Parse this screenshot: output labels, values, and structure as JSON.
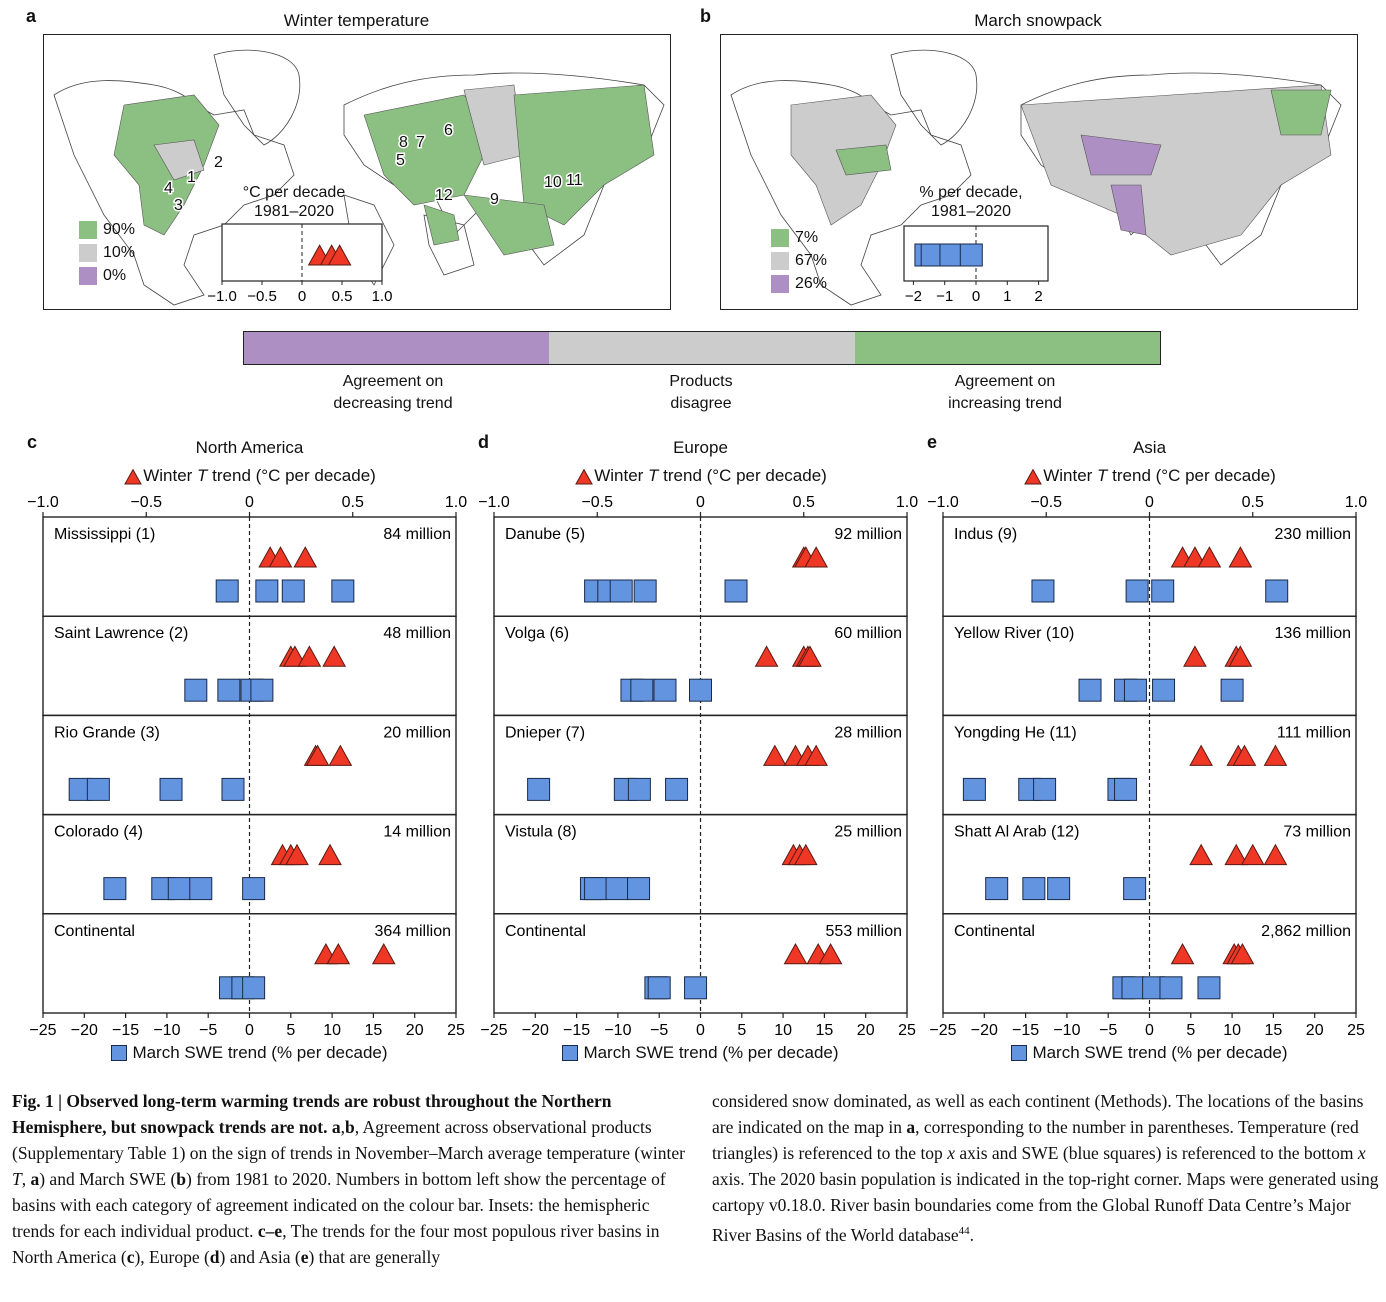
{
  "colors": {
    "increase": "#8cbf82",
    "disagree": "#cccccc",
    "decrease": "#ad8fc3",
    "triangle": "#ee3724",
    "square": "#6394e0",
    "outline": "#222222"
  },
  "panel_a": {
    "letter": "a",
    "title": "Winter temperature",
    "legend": [
      {
        "key": "increase",
        "label": "90%"
      },
      {
        "key": "disagree",
        "label": "10%"
      },
      {
        "key": "decrease",
        "label": "0%"
      }
    ],
    "inset": {
      "title_line1": "°C per decade",
      "title_line2": "1981–2020",
      "xlim": [
        -1.0,
        1.0
      ],
      "ticks": [
        "−1.0",
        "−0.5",
        "0",
        "0.5",
        "1.0"
      ],
      "tick_values": [
        -1.0,
        -0.5,
        0,
        0.5,
        1.0
      ],
      "marker": "triangle",
      "values": [
        0.22,
        0.37,
        0.47
      ]
    },
    "basin_numbers": [
      "1",
      "2",
      "3",
      "4",
      "5",
      "6",
      "7",
      "8",
      "9",
      "10",
      "11",
      "12"
    ]
  },
  "panel_b": {
    "letter": "b",
    "title": "March snowpack",
    "legend": [
      {
        "key": "increase",
        "label": "7%"
      },
      {
        "key": "disagree",
        "label": "67%"
      },
      {
        "key": "decrease",
        "label": "26%"
      }
    ],
    "inset": {
      "title_line1": "% per decade,",
      "title_line2": "1981–2020",
      "xlim": [
        -2.3,
        2.3
      ],
      "ticks": [
        "−2",
        "−1",
        "0",
        "1",
        "2"
      ],
      "tick_values": [
        -2,
        -1,
        0,
        1,
        2
      ],
      "marker": "square",
      "values": [
        -1.6,
        -1.4,
        -0.8,
        -0.15
      ]
    }
  },
  "colorbar": {
    "labels": [
      {
        "line1": "Agreement on",
        "line2": "decreasing trend"
      },
      {
        "line1": "Products",
        "line2": "disagree"
      },
      {
        "line1": "Agreement on",
        "line2": "increasing trend"
      }
    ]
  },
  "chart_data": [
    {
      "type": "scatter",
      "letter": "c",
      "title": "North America",
      "top_axis_label": "Winter T trend (°C per decade)",
      "bottom_axis_label": "March SWE trend (% per decade)",
      "top_xlim": [
        -1.0,
        1.0
      ],
      "top_ticks": [
        "−1.0",
        "−0.5",
        "0",
        "0.5",
        "1.0"
      ],
      "bottom_xlim": [
        -25,
        25
      ],
      "bottom_ticks": [
        "−25",
        "−20",
        "−15",
        "−10",
        "−5",
        "0",
        "5",
        "10",
        "15",
        "20",
        "25"
      ],
      "basins": [
        {
          "name": "Mississippi (1)",
          "population": "84 million",
          "temperature": [
            0.1,
            0.15,
            0.27
          ],
          "swe": [
            -2.7,
            2.1,
            5.3,
            11.3
          ]
        },
        {
          "name": "Saint Lawrence (2)",
          "population": "48 million",
          "temperature": [
            0.2,
            0.22,
            0.29,
            0.41
          ],
          "swe": [
            -6.5,
            -2.5,
            0.3,
            1.5
          ]
        },
        {
          "name": "Rio Grande (3)",
          "population": "20 million",
          "temperature": [
            0.32,
            0.33,
            0.44
          ],
          "swe": [
            -20.5,
            -18.3,
            -9.5,
            -2.0
          ]
        },
        {
          "name": "Colorado (4)",
          "population": "14 million",
          "temperature": [
            0.16,
            0.2,
            0.23,
            0.39
          ],
          "swe": [
            -16.3,
            -10.5,
            -8.5,
            -5.9,
            0.5
          ]
        },
        {
          "name": "Continental",
          "population": "364 million",
          "temperature": [
            0.37,
            0.43,
            0.65
          ],
          "swe": [
            -2.3,
            -0.8,
            0.5
          ]
        }
      ]
    },
    {
      "type": "scatter",
      "letter": "d",
      "title": "Europe",
      "top_axis_label": "Winter T trend (°C per decade)",
      "bottom_axis_label": "March SWE trend (% per decade)",
      "top_xlim": [
        -1.0,
        1.0
      ],
      "top_ticks": [
        "−1.0",
        "−0.5",
        "0",
        "0.5",
        "1.0"
      ],
      "bottom_xlim": [
        -25,
        25
      ],
      "bottom_ticks": [
        "−25",
        "−20",
        "−15",
        "−10",
        "−5",
        "0",
        "5",
        "10",
        "15",
        "20",
        "25"
      ],
      "basins": [
        {
          "name": "Danube (5)",
          "population": "92 million",
          "temperature": [
            0.5,
            0.51,
            0.56
          ],
          "swe": [
            -12.7,
            -11.1,
            -9.6,
            -6.7,
            4.3
          ]
        },
        {
          "name": "Volga (6)",
          "population": "60 million",
          "temperature": [
            0.32,
            0.5,
            0.52,
            0.53
          ],
          "swe": [
            -8.3,
            -7.1,
            -4.3,
            0.0
          ]
        },
        {
          "name": "Dnieper (7)",
          "population": "28 million",
          "temperature": [
            0.36,
            0.46,
            0.52,
            0.56
          ],
          "swe": [
            -19.6,
            -9.1,
            -7.4,
            -2.9
          ]
        },
        {
          "name": "Vistula (8)",
          "population": "25 million",
          "temperature": [
            0.45,
            0.48,
            0.51
          ],
          "swe": [
            -13.2,
            -12.7,
            -10.1,
            -7.5
          ]
        },
        {
          "name": "Continental",
          "population": "553 million",
          "temperature": [
            0.46,
            0.57,
            0.63
          ],
          "swe": [
            -5.4,
            -5.0,
            -0.6
          ]
        }
      ]
    },
    {
      "type": "scatter",
      "letter": "e",
      "title": "Asia",
      "top_axis_label": "Winter T trend (°C per decade)",
      "bottom_axis_label": "March SWE trend (% per decade)",
      "top_xlim": [
        -1.0,
        1.0
      ],
      "top_ticks": [
        "−1.0",
        "−0.5",
        "0",
        "0.5",
        "1.0"
      ],
      "bottom_xlim": [
        -25,
        25
      ],
      "bottom_ticks": [
        "−25",
        "−20",
        "−15",
        "−10",
        "−5",
        "0",
        "5",
        "10",
        "15",
        "20",
        "25"
      ],
      "basins": [
        {
          "name": "Indus (9)",
          "population": "230 million",
          "temperature": [
            0.16,
            0.22,
            0.29,
            0.44
          ],
          "swe": [
            -12.9,
            -1.5,
            1.6,
            15.4
          ]
        },
        {
          "name": "Yellow River (10)",
          "population": "136 million",
          "temperature": [
            0.22,
            0.42,
            0.44
          ],
          "swe": [
            -7.2,
            -2.9,
            -1.7,
            1.7,
            10.0
          ]
        },
        {
          "name": "Yongding He (11)",
          "population": "111 million",
          "temperature": [
            0.25,
            0.43,
            0.46,
            0.61
          ],
          "swe": [
            -21.2,
            -14.5,
            -12.7,
            -3.7,
            -2.9
          ]
        },
        {
          "name": "Shatt Al Arab (12)",
          "population": "73 million",
          "temperature": [
            0.25,
            0.42,
            0.5,
            0.61
          ],
          "swe": [
            -18.5,
            -14.0,
            -11.0,
            -1.8
          ]
        },
        {
          "name": "Continental",
          "population": "2,862 million",
          "temperature": [
            0.16,
            0.41,
            0.43,
            0.45
          ],
          "swe": [
            -3.1,
            -2.0,
            0.5,
            2.6,
            7.2
          ]
        }
      ]
    }
  ],
  "caption": {
    "fig_label": "Fig. 1 | ",
    "bold_title": "Observed long-term warming trends are robust throughout the Northern Hemisphere, but snowpack trends are not.",
    "seg1_bold": " a",
    "seg1_sep": ",",
    "seg1_bold2": "b",
    "text1": ", Agreement across observational products (Supplementary Table 1) on the sign of trends in November–March average temperature (winter ",
    "italic_T": "T",
    "text2": ", ",
    "bold_a": "a",
    "text3": ") and March SWE (",
    "bold_b": "b",
    "text4": ") from 1981 to 2020. Numbers in bottom left show the percentage of basins with each category of agreement indicated on the colour bar. Insets: the hemispheric trends for each individual product. ",
    "bold_ce": "c–e",
    "text5": ", The trends for the four most populous river basins in North America (",
    "bold_c": "c",
    "text6": "), Europe (",
    "bold_d": "d",
    "text7": ") and Asia (",
    "bold_e": "e",
    "text8": ") that are generally considered snow dominated, as well as each continent (Methods). The locations of the basins are indicated on the map in ",
    "bold_a2": "a",
    "text9": ", corresponding to the number in parentheses. Temperature (red triangles) is referenced to the top ",
    "italic_x1": "x",
    "text10": " axis and SWE (blue squares) is referenced to the bottom ",
    "italic_x2": "x",
    "text11": " axis. The 2020 basin population is indicated in the top-right corner. Maps were generated using cartopy v0.18.0. River basin boundaries come from the Global Runoff Data Centre’s Major River Basins of the World database",
    "superscript": "44",
    "text12": "."
  }
}
